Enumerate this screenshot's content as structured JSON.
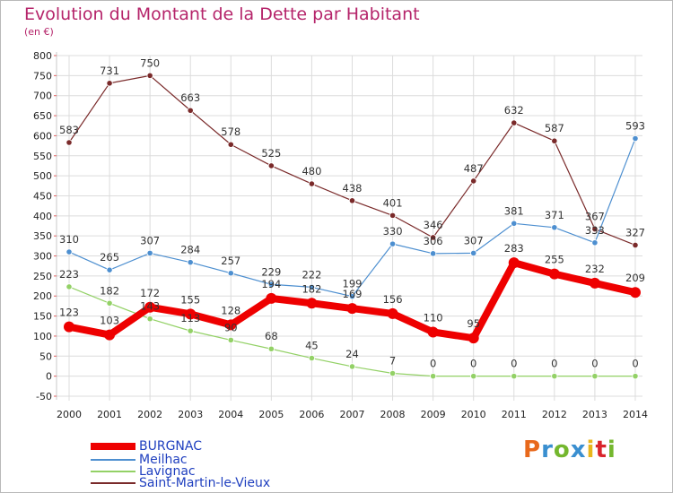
{
  "title": "Evolution du Montant de la Dette par Habitant",
  "subtitle": "(en €)",
  "logo_text": "Proxiti",
  "logo_colors": [
    "#e8691c",
    "#3a8fd0",
    "#74b72e",
    "#3a8fd0",
    "#e8b61c",
    "#d9252c",
    "#74b72e"
  ],
  "chart_data": {
    "type": "line",
    "title": "Evolution du Montant de la Dette par Habitant",
    "ylabel": "(en €)",
    "xlabel": "",
    "ylim": [
      -50,
      800
    ],
    "y_ticks": [
      -50,
      0,
      50,
      100,
      150,
      200,
      250,
      300,
      350,
      400,
      450,
      500,
      550,
      600,
      650,
      700,
      750,
      800
    ],
    "grid": true,
    "legend_position": "bottom-left",
    "x": [
      "2000",
      "2001",
      "2002",
      "2003",
      "2004",
      "2005",
      "2006",
      "2007",
      "2008",
      "2009",
      "2010",
      "2011",
      "2012",
      "2013",
      "2014"
    ],
    "series": [
      {
        "name": "Saint-Martin-le-Vieux",
        "color": "#7a2a2a",
        "line_width": 1.2,
        "marker_size": 3.2,
        "values": [
          583,
          731,
          750,
          663,
          578,
          525,
          480,
          438,
          401,
          346,
          487,
          632,
          587,
          367,
          327
        ]
      },
      {
        "name": "Meilhac",
        "color": "#4d8fd0",
        "line_width": 1.2,
        "marker_size": 3.2,
        "values": [
          310,
          265,
          307,
          284,
          257,
          229,
          222,
          199,
          330,
          306,
          307,
          381,
          371,
          333,
          593
        ]
      },
      {
        "name": "Lavignac",
        "color": "#93d166",
        "line_width": 1.2,
        "marker_size": 3.2,
        "values": [
          223,
          182,
          143,
          113,
          90,
          68,
          45,
          24,
          7,
          0,
          0,
          0,
          0,
          0,
          0
        ]
      },
      {
        "name": "BURGNAC",
        "color": "#ee0000",
        "line_width": 8,
        "marker_size": 6,
        "values": [
          123,
          103,
          172,
          155,
          128,
          194,
          182,
          169,
          156,
          110,
          95,
          283,
          255,
          232,
          209
        ]
      }
    ],
    "labels": {
      "Saint-Martin-le-Vieux": [
        "583",
        "731",
        "750",
        "663",
        "578",
        "525",
        "480",
        "438",
        "401",
        "346",
        "487",
        "632",
        "587",
        "367",
        "327"
      ],
      "Meilhac": [
        "310",
        "265",
        "307",
        "284",
        "257",
        "229",
        "222",
        "199",
        "330",
        "306",
        "307",
        "381",
        "371",
        "333",
        "593"
      ],
      "Lavignac": [
        "223",
        "182",
        "143",
        "113",
        "90",
        "68",
        "45",
        "24",
        "7",
        "0",
        "0",
        "0",
        "0",
        "0",
        "0"
      ],
      "BURGNAC": [
        "123",
        "103",
        "172",
        "155",
        "128",
        "194",
        "182",
        "169",
        "156",
        "110",
        "95",
        "283",
        "255",
        "232",
        "209"
      ]
    },
    "legend": [
      "BURGNAC",
      "Meilhac",
      "Lavignac",
      "Saint-Martin-le-Vieux"
    ]
  }
}
